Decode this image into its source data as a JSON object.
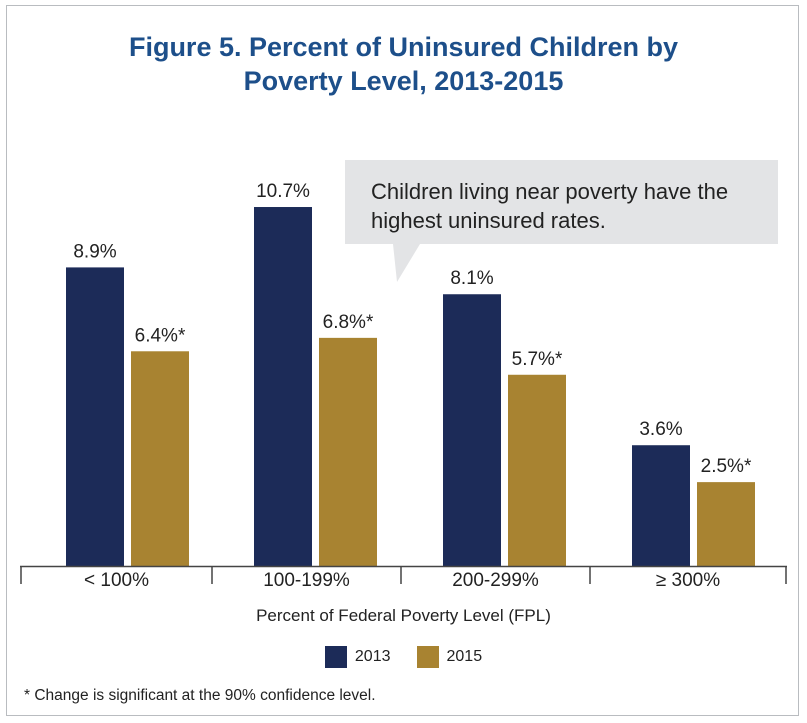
{
  "title_line1": "Figure 5. Percent of Uninsured Children by",
  "title_line2": "Poverty Level, 2013-2015",
  "callout_line1": "Children living near poverty have the",
  "callout_line2": "highest uninsured rates.",
  "footnote": "* Change is significant at the 90% confidence level.",
  "colors": {
    "2013": "#1c2b58",
    "2015": "#a88331",
    "title": "#1d4f8a",
    "callout": "#e3e4e6"
  },
  "chart_data": {
    "type": "bar",
    "title": "Figure 5. Percent of Uninsured Children by Poverty Level, 2013-2015",
    "xlabel": "Percent of Federal Poverty Level (FPL)",
    "ylabel": "",
    "categories": [
      "< 100%",
      "100-199%",
      "200-299%",
      "≥ 300%"
    ],
    "series": [
      {
        "name": "2013",
        "values": [
          8.9,
          10.7,
          8.1,
          3.6
        ],
        "labels": [
          "8.9%",
          "10.7%",
          "8.1%",
          "3.6%"
        ]
      },
      {
        "name": "2015",
        "values": [
          6.4,
          6.8,
          5.7,
          2.5
        ],
        "labels": [
          "6.4%*",
          "6.8%*",
          "5.7%*",
          "2.5%*"
        ]
      }
    ],
    "ylim": [
      0,
      12
    ],
    "grid": false,
    "legend": "bottom"
  }
}
